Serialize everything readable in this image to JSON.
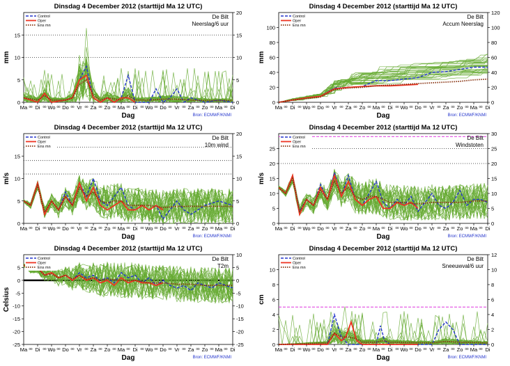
{
  "page": {
    "title_text": "Dinsdag   4 December  2012  (starttijd  Ma 12 UTC)",
    "location": "De Bilt",
    "source": "Bron: ECMWF/KNMI",
    "xlabel": "Dag",
    "legend": [
      "Control",
      "Oper",
      "Ens mn"
    ],
    "colors": {
      "members": "#66aa33",
      "control": "#2233cc",
      "oper": "#ee3322",
      "ensmean": "#883311",
      "threshold": "#dd33dd",
      "grid": "#333333"
    }
  },
  "chart_data": [
    {
      "id": "precip6h",
      "type": "line",
      "title": "Dinsdag   4 December  2012  (starttijd  Ma 12 UTC)",
      "ylabel": "mm",
      "subtitle": "Neerslag/6 uur",
      "ylim": [
        0,
        20
      ],
      "left_ticks": [
        0,
        5,
        10,
        15
      ],
      "right_ticks": [
        0,
        5,
        10,
        15,
        20
      ],
      "dotted_lines": [
        10,
        15
      ],
      "magenta_lines": [],
      "x_labels": [
        "Ma",
        "Di",
        "Wo",
        "Do",
        "Vr",
        "Za",
        "Zo",
        "Ma",
        "Di",
        "Wo",
        "Do",
        "Vr",
        "Za",
        "Zo",
        "Ma",
        "Di"
      ],
      "series": [
        {
          "name": "Control",
          "x": [
            0,
            1,
            1.5,
            2,
            3,
            3.5,
            4,
            4.5,
            5,
            5.5,
            6,
            6.5,
            7,
            7.5,
            8,
            9,
            9.5,
            10,
            10.5,
            11,
            11.5,
            12,
            13,
            14,
            15
          ],
          "values": [
            1,
            0,
            2,
            0,
            0.5,
            1,
            5,
            8,
            1,
            0,
            1,
            0,
            1,
            6,
            0,
            0,
            3,
            0,
            1,
            3,
            0,
            1,
            0,
            0.5,
            0
          ]
        },
        {
          "name": "Oper",
          "x": [
            0,
            1,
            1.5,
            2,
            3,
            3.5,
            4,
            4.5,
            5,
            5.5,
            6,
            6.5,
            7,
            7.5,
            8
          ],
          "values": [
            1,
            0,
            2,
            0,
            0.5,
            1,
            5,
            6,
            1,
            0,
            1,
            0,
            1,
            1,
            0
          ]
        },
        {
          "name": "Ens mn",
          "x": [
            0,
            1,
            1.5,
            2,
            3,
            3.5,
            4,
            4.5,
            5,
            5.5,
            6,
            7,
            7.5,
            8,
            9,
            10,
            11,
            12,
            13,
            14,
            15
          ],
          "values": [
            1,
            0.5,
            1.5,
            0.5,
            0.5,
            1,
            4,
            5,
            1.5,
            0.5,
            1,
            0.5,
            1.5,
            0.5,
            0.5,
            0.7,
            0.7,
            0.5,
            0.4,
            0.4,
            0.4
          ]
        }
      ]
    },
    {
      "id": "accum",
      "type": "line",
      "title": "Dinsdag   4 December  2012  (starttijd  Ma 12 UTC)",
      "ylabel": "mm",
      "subtitle": "Accum Neerslag",
      "ylim": [
        0,
        120
      ],
      "left_ticks": [
        0,
        20,
        40,
        60,
        80,
        100
      ],
      "right_ticks": [
        0,
        20,
        40,
        60,
        80,
        100,
        120
      ],
      "dotted_lines": [],
      "magenta_lines": [],
      "x_labels": [
        "Ma",
        "Di",
        "Wo",
        "Do",
        "Vr",
        "Za",
        "Zo",
        "Ma",
        "Di",
        "Wo",
        "Do",
        "Vr",
        "Za",
        "Zo",
        "Ma",
        "Di"
      ],
      "series": [
        {
          "name": "Control",
          "x": [
            0,
            1,
            2,
            3,
            4,
            5,
            6,
            7,
            8,
            9,
            10,
            11,
            12,
            13,
            14,
            15
          ],
          "values": [
            0,
            3,
            6,
            8,
            19,
            20,
            21,
            29,
            29,
            31,
            33,
            40,
            41,
            44,
            47,
            47
          ]
        },
        {
          "name": "Oper",
          "x": [
            0,
            1,
            2,
            3,
            4,
            5,
            6,
            7,
            8,
            9,
            10
          ],
          "values": [
            0,
            3,
            6,
            8,
            18,
            20,
            21,
            22,
            22,
            23,
            24
          ]
        },
        {
          "name": "Ens mn",
          "x": [
            0,
            1,
            2,
            3,
            4,
            5,
            6,
            7,
            8,
            9,
            10,
            11,
            12,
            13,
            14,
            15
          ],
          "values": [
            0,
            3,
            5,
            7,
            17,
            19,
            20,
            22,
            23,
            24,
            25,
            26,
            27,
            28,
            30,
            31
          ]
        }
      ]
    },
    {
      "id": "wind",
      "type": "line",
      "title": "Dinsdag   4 December  2012  (starttijd  Ma 12 UTC)",
      "ylabel": "m/s",
      "subtitle": "10m wind",
      "ylim": [
        0,
        20
      ],
      "left_ticks": [
        0,
        5,
        10,
        15
      ],
      "right_ticks": [
        0,
        5,
        10,
        15,
        20
      ],
      "dotted_lines": [
        11,
        14,
        17
      ],
      "magenta_lines": [],
      "x_labels": [
        "Ma",
        "Di",
        "Wo",
        "Do",
        "Vr",
        "Za",
        "Zo",
        "Ma",
        "Di",
        "Wo",
        "Do",
        "Vr",
        "Za",
        "Zo",
        "Ma",
        "Di"
      ],
      "series": [
        {
          "name": "Control",
          "x": [
            0,
            0.5,
            1,
            1.5,
            2,
            2.5,
            3,
            3.5,
            4,
            4.5,
            5,
            5.5,
            6,
            6.5,
            7,
            7.5,
            8,
            8.5,
            9,
            9.5,
            10,
            10.5,
            11,
            11.5,
            12,
            13,
            14,
            15
          ],
          "values": [
            5,
            4,
            9,
            2,
            5,
            3,
            7,
            4,
            9,
            6,
            10,
            5,
            4,
            6,
            8,
            4,
            3,
            4,
            3,
            4,
            1,
            3,
            5,
            3,
            2,
            4,
            5,
            4
          ]
        },
        {
          "name": "Oper",
          "x": [
            0,
            0.5,
            1,
            1.5,
            2,
            2.5,
            3,
            3.5,
            4,
            4.5,
            5,
            5.5,
            6,
            6.5,
            7,
            7.5,
            8,
            8.5,
            9,
            9.5,
            10
          ],
          "values": [
            5,
            4,
            9,
            2,
            5,
            3,
            6,
            4,
            9,
            5,
            8,
            4,
            3,
            4,
            5,
            3,
            3,
            4,
            3,
            4,
            3
          ]
        },
        {
          "name": "Ens mn",
          "x": [
            0,
            0.5,
            1,
            1.5,
            2,
            2.5,
            3,
            3.5,
            4,
            4.5,
            5,
            5.5,
            6,
            6.5,
            7,
            7.5,
            8,
            9,
            10,
            11,
            12,
            13,
            14,
            15
          ],
          "values": [
            5,
            4,
            8.5,
            2.5,
            5,
            3,
            6,
            4,
            8,
            6,
            7,
            5,
            4.5,
            5,
            5,
            4,
            4,
            4,
            3.5,
            3.8,
            3.8,
            3.8,
            3.8,
            3.8
          ]
        }
      ]
    },
    {
      "id": "gusts",
      "type": "line",
      "title": "Dinsdag   4 December  2012  (starttijd  Ma 12 UTC)",
      "ylabel": "m/s",
      "subtitle": "Windstoten",
      "ylim": [
        0,
        30
      ],
      "left_ticks": [
        0,
        5,
        10,
        15,
        20,
        25
      ],
      "right_ticks": [
        0,
        5,
        10,
        15,
        20,
        25,
        30
      ],
      "dotted_lines": [
        20,
        25
      ],
      "magenta_lines": [
        29
      ],
      "x_labels": [
        "Ma",
        "Di",
        "Wo",
        "Do",
        "Vr",
        "Za",
        "Zo",
        "Ma",
        "Di",
        "Wo",
        "Do",
        "Vr",
        "Za",
        "Zo",
        "Ma",
        "Di"
      ],
      "series": [
        {
          "name": "Control",
          "x": [
            0,
            0.5,
            1,
            1.5,
            2,
            2.5,
            3,
            3.5,
            4,
            4.5,
            5,
            5.5,
            6,
            6.5,
            7,
            7.5,
            8,
            8.5,
            9,
            9.5,
            10,
            10.5,
            11,
            11.5,
            12,
            12.5,
            13,
            13.5,
            14,
            14.5,
            15
          ],
          "values": [
            12,
            10,
            16,
            4,
            8,
            6,
            13,
            8,
            17,
            9,
            16,
            8,
            6,
            10,
            14,
            7,
            5,
            8,
            6,
            9,
            4,
            7,
            10,
            6,
            5,
            7,
            11,
            6,
            8,
            8,
            7
          ]
        },
        {
          "name": "Oper",
          "x": [
            0,
            0.5,
            1,
            1.5,
            2,
            2.5,
            3,
            3.5,
            4,
            4.5,
            5,
            5.5,
            6,
            6.5,
            7,
            7.5,
            8,
            8.5,
            9,
            9.5,
            10
          ],
          "values": [
            12,
            10,
            16,
            3,
            8,
            6,
            12,
            8,
            16,
            9,
            14,
            8,
            6,
            8,
            9,
            5,
            5,
            7,
            6,
            7,
            5
          ]
        },
        {
          "name": "Ens mn",
          "x": [
            0,
            0.5,
            1,
            1.5,
            2,
            2.5,
            3,
            3.5,
            4,
            4.5,
            5,
            5.5,
            6,
            6.5,
            7,
            7.5,
            8,
            9,
            10,
            11,
            12,
            13,
            14,
            15
          ],
          "values": [
            12,
            10,
            15,
            4,
            8,
            6,
            11,
            8,
            14,
            10,
            12,
            9,
            8,
            9,
            9,
            8,
            7,
            7,
            6.5,
            7,
            7,
            7,
            7.5,
            7.5
          ]
        }
      ]
    },
    {
      "id": "t2m",
      "type": "line",
      "title": "Dinsdag   4 December  2012  (starttijd  Ma 12 UTC)",
      "ylabel": "Celsius",
      "subtitle": "T2m",
      "ylim": [
        -25,
        10
      ],
      "left_ticks": [
        -25,
        -20,
        -15,
        -10,
        -5,
        0,
        5
      ],
      "right_ticks": [
        -25,
        -20,
        -15,
        -10,
        -5,
        0,
        5,
        10
      ],
      "dotted_lines": [],
      "magenta_lines": [],
      "zero_line": true,
      "x_labels": [
        "Ma",
        "Di",
        "Wo",
        "Do",
        "Vr",
        "Za",
        "Zo",
        "Ma",
        "Di",
        "Wo",
        "Do",
        "Vr",
        "Za",
        "Zo",
        "Ma",
        "Di"
      ],
      "series": [
        {
          "name": "Control",
          "x": [
            0,
            0.5,
            1,
            1.5,
            2,
            2.5,
            3,
            3.5,
            4,
            4.5,
            5,
            5.5,
            6,
            6.5,
            7,
            7.5,
            8,
            8.5,
            9,
            9.5,
            10,
            10.5,
            11,
            11.5,
            12,
            12.5,
            13,
            13.5,
            14,
            14.5,
            15
          ],
          "values": [
            6,
            4,
            5,
            2,
            3,
            1,
            2,
            0,
            3,
            1,
            2,
            0,
            1,
            -1,
            3,
            1,
            2,
            -1,
            1,
            -2,
            0,
            -2,
            -3,
            -2,
            -4,
            -1,
            -2,
            -3,
            -1,
            -2,
            -3
          ]
        },
        {
          "name": "Oper",
          "x": [
            0,
            0.5,
            1,
            1.5,
            2,
            2.5,
            3,
            3.5,
            4,
            4.5,
            5,
            5.5,
            6,
            6.5,
            7,
            7.5,
            8,
            8.5,
            9,
            9.5,
            10
          ],
          "values": [
            6,
            4,
            5,
            2,
            3,
            1,
            2,
            0,
            2,
            0,
            1,
            -1,
            0,
            -2,
            1,
            -1,
            0,
            -1,
            -1,
            -2,
            -1
          ]
        },
        {
          "name": "Ens mn",
          "x": [
            0,
            0.5,
            1,
            1.5,
            2,
            2.5,
            3,
            3.5,
            4,
            4.5,
            5,
            5.5,
            6,
            7,
            8,
            9,
            10,
            11,
            12,
            13,
            14,
            15
          ],
          "values": [
            6,
            4,
            4.5,
            2,
            2.5,
            1,
            2,
            0.5,
            2,
            0.5,
            1,
            0,
            0.5,
            0,
            0,
            -1,
            -1,
            -1.5,
            -1.5,
            -2,
            -2,
            -2
          ]
        }
      ]
    },
    {
      "id": "snow6h",
      "type": "line",
      "title": "Dinsdag   4 December  2012  (starttijd  Ma 12 UTC)",
      "ylabel": "cm",
      "subtitle": "Sneeuwval/6 uur",
      "ylim": [
        0,
        12
      ],
      "left_ticks": [
        0,
        2,
        4,
        6,
        8,
        10
      ],
      "right_ticks": [
        0,
        2,
        4,
        6,
        8,
        10,
        12
      ],
      "dotted_lines": [],
      "magenta_lines": [
        5
      ],
      "x_labels": [
        "Ma",
        "Di",
        "Wo",
        "Do",
        "Vr",
        "Za",
        "Zo",
        "Ma",
        "Di",
        "Wo",
        "Do",
        "Vr",
        "Za",
        "Zo",
        "Ma",
        "Di"
      ],
      "series": [
        {
          "name": "Control",
          "x": [
            0,
            3.5,
            4,
            4.5,
            5,
            5.5,
            7,
            7.3,
            7.6,
            8,
            11,
            11.5,
            12,
            12.5,
            13,
            15
          ],
          "values": [
            0,
            0,
            4,
            1,
            0,
            0,
            0,
            2.5,
            0.5,
            0,
            0,
            2,
            3,
            2,
            0,
            0
          ]
        },
        {
          "name": "Oper",
          "x": [
            0,
            3.5,
            4,
            4.5,
            4.8,
            5.2,
            5.6,
            6,
            10
          ],
          "values": [
            0,
            0,
            1.5,
            0.5,
            1,
            3,
            0.5,
            0,
            0
          ]
        },
        {
          "name": "Ens mn",
          "x": [
            0,
            3.5,
            4,
            4.5,
            5,
            5.5,
            6,
            7,
            7.5,
            8,
            11,
            12,
            13,
            15
          ],
          "values": [
            0,
            0.2,
            1.5,
            1,
            1,
            0.8,
            0.3,
            0.3,
            0.5,
            0.3,
            0.2,
            0.4,
            0.3,
            0.2
          ]
        }
      ]
    }
  ]
}
